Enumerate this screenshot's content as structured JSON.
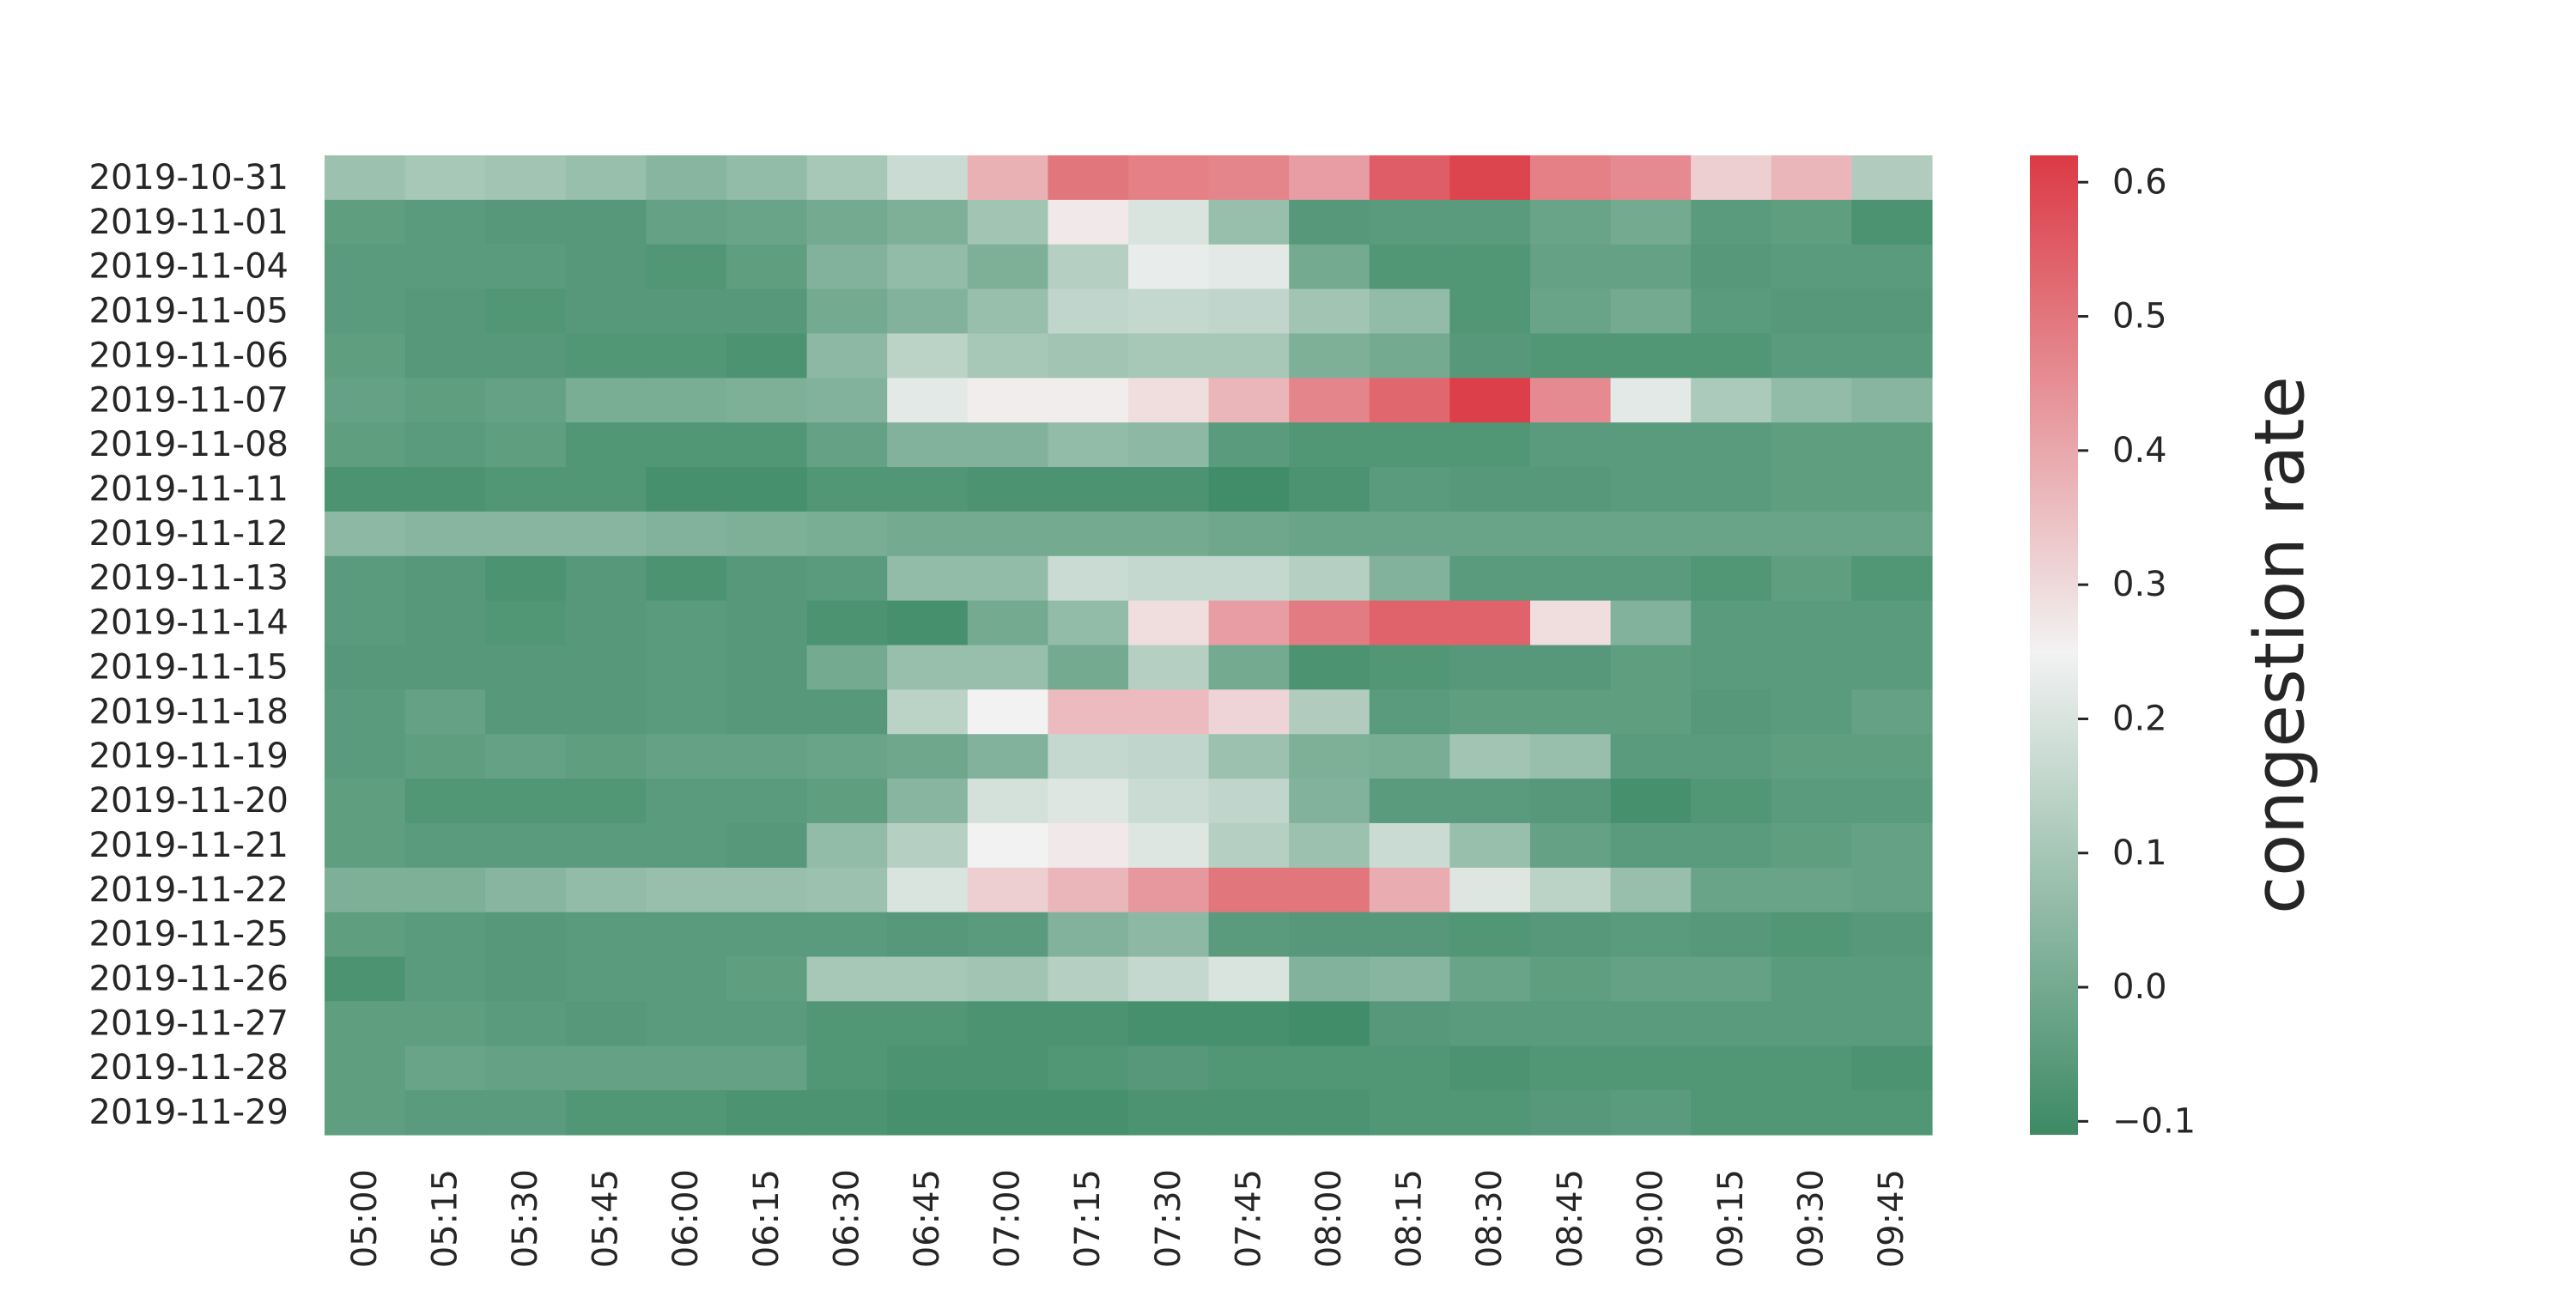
{
  "chart_data": {
    "type": "heatmap",
    "title": "",
    "xlabel": "",
    "ylabel": "",
    "x_categories": [
      "05:00",
      "05:15",
      "05:30",
      "05:45",
      "06:00",
      "06:15",
      "06:30",
      "06:45",
      "07:00",
      "07:15",
      "07:30",
      "07:45",
      "08:00",
      "08:15",
      "08:30",
      "08:45",
      "09:00",
      "09:15",
      "09:30",
      "09:45"
    ],
    "y_categories": [
      "2019-10-31",
      "2019-11-01",
      "2019-11-04",
      "2019-11-05",
      "2019-11-06",
      "2019-11-07",
      "2019-11-08",
      "2019-11-11",
      "2019-11-12",
      "2019-11-13",
      "2019-11-14",
      "2019-11-15",
      "2019-11-18",
      "2019-11-19",
      "2019-11-20",
      "2019-11-21",
      "2019-11-22",
      "2019-11-25",
      "2019-11-26",
      "2019-11-27",
      "2019-11-28",
      "2019-11-29"
    ],
    "values": [
      [
        0.08,
        0.1,
        0.09,
        0.07,
        0.04,
        0.06,
        0.1,
        0.17,
        0.38,
        0.5,
        0.48,
        0.47,
        0.42,
        0.55,
        0.6,
        0.48,
        0.46,
        0.32,
        0.37,
        0.12
      ],
      [
        -0.04,
        -0.05,
        -0.06,
        -0.06,
        -0.03,
        -0.02,
        0.0,
        0.02,
        0.09,
        0.27,
        0.2,
        0.07,
        -0.06,
        -0.05,
        -0.05,
        -0.02,
        0.0,
        -0.05,
        -0.04,
        -0.08
      ],
      [
        -0.05,
        -0.05,
        -0.05,
        -0.06,
        -0.07,
        -0.04,
        0.03,
        0.06,
        0.02,
        0.13,
        0.23,
        0.22,
        0.0,
        -0.07,
        -0.07,
        -0.03,
        -0.03,
        -0.06,
        -0.05,
        -0.05
      ],
      [
        -0.05,
        -0.06,
        -0.07,
        -0.06,
        -0.06,
        -0.06,
        0.0,
        0.03,
        0.07,
        0.15,
        0.16,
        0.15,
        0.09,
        0.06,
        -0.07,
        -0.02,
        0.0,
        -0.05,
        -0.06,
        -0.06
      ],
      [
        -0.04,
        -0.06,
        -0.06,
        -0.07,
        -0.07,
        -0.08,
        0.05,
        0.14,
        0.1,
        0.09,
        0.1,
        0.1,
        0.02,
        0.0,
        -0.06,
        -0.07,
        -0.07,
        -0.07,
        -0.05,
        -0.05
      ],
      [
        -0.03,
        -0.04,
        -0.03,
        0.01,
        0.01,
        0.02,
        0.03,
        0.22,
        0.26,
        0.26,
        0.29,
        0.37,
        0.47,
        0.53,
        0.61,
        0.46,
        0.22,
        0.11,
        0.06,
        0.04
      ],
      [
        -0.04,
        -0.05,
        -0.04,
        -0.07,
        -0.07,
        -0.07,
        -0.03,
        0.03,
        0.03,
        0.06,
        0.05,
        -0.05,
        -0.07,
        -0.07,
        -0.07,
        -0.05,
        -0.05,
        -0.05,
        -0.04,
        -0.04
      ],
      [
        -0.08,
        -0.08,
        -0.07,
        -0.07,
        -0.09,
        -0.09,
        -0.07,
        -0.07,
        -0.08,
        -0.08,
        -0.08,
        -0.1,
        -0.08,
        -0.05,
        -0.06,
        -0.06,
        -0.05,
        -0.05,
        -0.04,
        -0.04
      ],
      [
        0.05,
        0.04,
        0.04,
        0.04,
        0.03,
        0.02,
        0.01,
        0.0,
        0.0,
        0.0,
        0.0,
        -0.01,
        -0.02,
        -0.02,
        -0.02,
        -0.02,
        -0.02,
        -0.02,
        -0.02,
        -0.02
      ],
      [
        -0.05,
        -0.06,
        -0.08,
        -0.06,
        -0.08,
        -0.06,
        -0.05,
        0.06,
        0.06,
        0.17,
        0.16,
        0.16,
        0.13,
        0.03,
        -0.05,
        -0.05,
        -0.05,
        -0.07,
        -0.04,
        -0.07
      ],
      [
        -0.05,
        -0.06,
        -0.07,
        -0.06,
        -0.05,
        -0.06,
        -0.08,
        -0.09,
        0.0,
        0.06,
        0.29,
        0.42,
        0.49,
        0.54,
        0.54,
        0.29,
        0.03,
        -0.05,
        -0.05,
        -0.05
      ],
      [
        -0.06,
        -0.06,
        -0.06,
        -0.06,
        -0.05,
        -0.06,
        0.0,
        0.07,
        0.07,
        0.0,
        0.13,
        0.0,
        -0.08,
        -0.07,
        -0.06,
        -0.06,
        -0.04,
        -0.05,
        -0.05,
        -0.05
      ],
      [
        -0.05,
        -0.03,
        -0.06,
        -0.06,
        -0.05,
        -0.06,
        -0.06,
        0.14,
        0.25,
        0.36,
        0.36,
        0.31,
        0.12,
        -0.05,
        -0.04,
        -0.04,
        -0.04,
        -0.06,
        -0.05,
        -0.03
      ],
      [
        -0.05,
        -0.04,
        -0.03,
        -0.04,
        -0.03,
        -0.03,
        -0.02,
        -0.01,
        0.03,
        0.16,
        0.15,
        0.08,
        0.02,
        0.01,
        0.09,
        0.07,
        -0.05,
        -0.05,
        -0.04,
        -0.04
      ],
      [
        -0.04,
        -0.07,
        -0.07,
        -0.07,
        -0.05,
        -0.05,
        -0.04,
        0.04,
        0.19,
        0.21,
        0.17,
        0.15,
        0.03,
        -0.05,
        -0.05,
        -0.06,
        -0.09,
        -0.07,
        -0.05,
        -0.05
      ],
      [
        -0.04,
        -0.05,
        -0.05,
        -0.05,
        -0.05,
        -0.06,
        0.06,
        0.13,
        0.25,
        0.27,
        0.21,
        0.13,
        0.08,
        0.17,
        0.07,
        -0.03,
        -0.05,
        -0.05,
        -0.04,
        -0.03
      ],
      [
        0.02,
        0.02,
        0.04,
        0.06,
        0.07,
        0.07,
        0.08,
        0.2,
        0.32,
        0.37,
        0.43,
        0.5,
        0.5,
        0.39,
        0.21,
        0.14,
        0.07,
        -0.02,
        -0.02,
        -0.03
      ],
      [
        -0.04,
        -0.05,
        -0.06,
        -0.05,
        -0.05,
        -0.05,
        -0.05,
        -0.06,
        -0.05,
        0.03,
        0.05,
        -0.05,
        -0.06,
        -0.06,
        -0.07,
        -0.06,
        -0.05,
        -0.06,
        -0.07,
        -0.06
      ],
      [
        -0.08,
        -0.05,
        -0.06,
        -0.05,
        -0.05,
        -0.04,
        0.1,
        0.1,
        0.09,
        0.13,
        0.16,
        0.2,
        0.03,
        0.04,
        -0.02,
        -0.04,
        -0.03,
        -0.03,
        -0.05,
        -0.05
      ],
      [
        -0.04,
        -0.04,
        -0.05,
        -0.06,
        -0.05,
        -0.05,
        -0.07,
        -0.07,
        -0.08,
        -0.08,
        -0.09,
        -0.09,
        -0.1,
        -0.06,
        -0.05,
        -0.05,
        -0.05,
        -0.05,
        -0.05,
        -0.05
      ],
      [
        -0.04,
        -0.02,
        -0.03,
        -0.03,
        -0.03,
        -0.03,
        -0.07,
        -0.08,
        -0.08,
        -0.07,
        -0.06,
        -0.07,
        -0.07,
        -0.07,
        -0.08,
        -0.07,
        -0.07,
        -0.07,
        -0.07,
        -0.08
      ],
      [
        -0.04,
        -0.05,
        -0.05,
        -0.07,
        -0.07,
        -0.08,
        -0.08,
        -0.09,
        -0.09,
        -0.09,
        -0.08,
        -0.08,
        -0.08,
        -0.07,
        -0.07,
        -0.06,
        -0.05,
        -0.07,
        -0.07,
        -0.07
      ]
    ],
    "colorbar": {
      "label": "congestion rate",
      "vmin": -0.11,
      "vmax": 0.62,
      "ticks": [
        -0.1,
        0.0,
        0.1,
        0.2,
        0.3,
        0.4,
        0.5,
        0.6
      ],
      "tick_labels": [
        "−0.1",
        "0.0",
        "0.1",
        "0.2",
        "0.3",
        "0.4",
        "0.5",
        "0.6"
      ],
      "colormap": "diverging green-white-red",
      "colors": {
        "low": "#3d8a65",
        "mid": "#f2f2f2",
        "high": "#db3a45"
      },
      "mid_value": 0.25
    },
    "grid": false
  }
}
